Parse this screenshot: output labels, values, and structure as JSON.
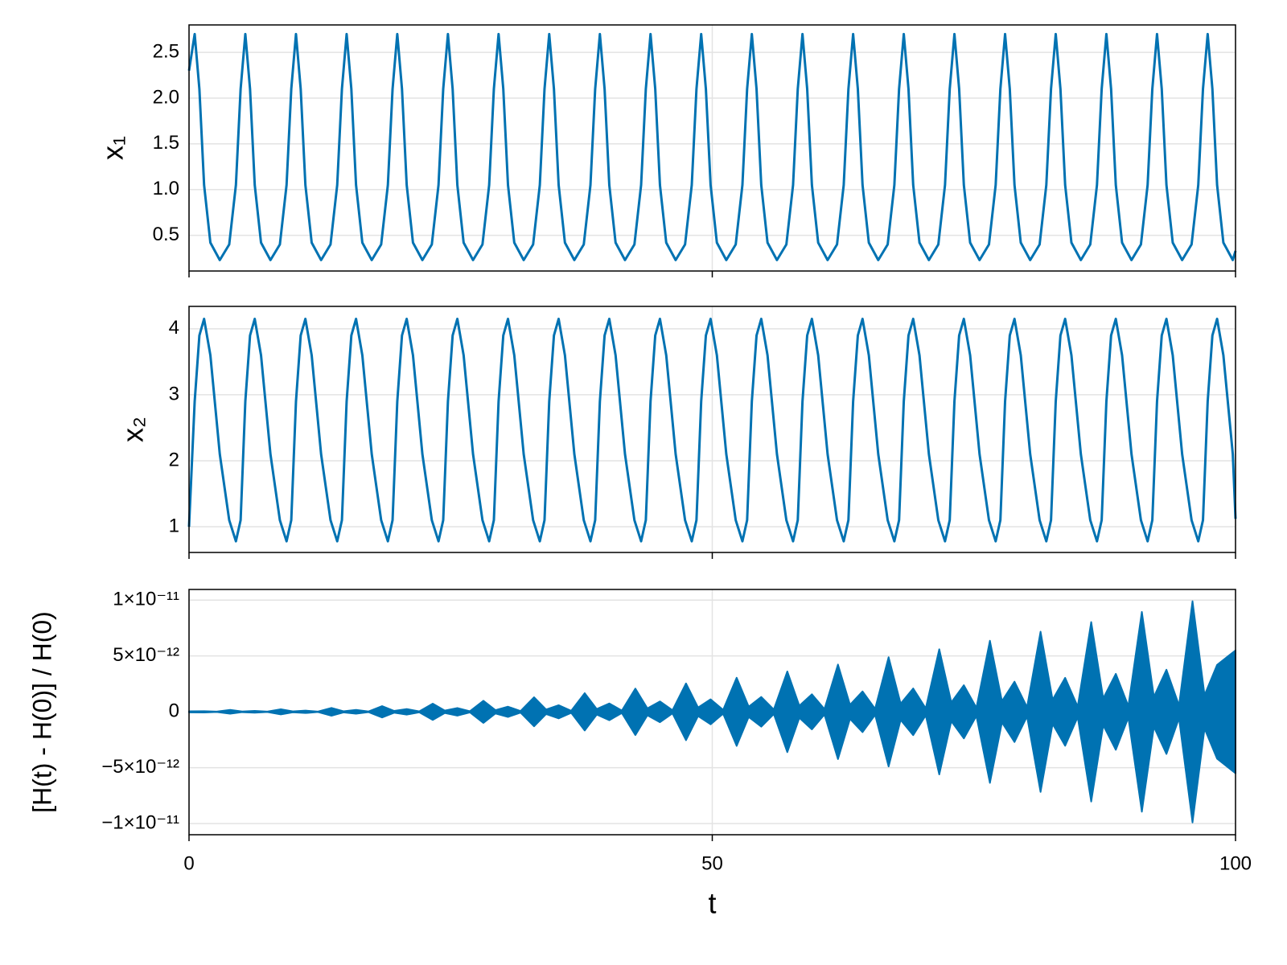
{
  "chart_data": [
    {
      "type": "line",
      "ylabel": "x₁",
      "grid": true,
      "xlim": [
        0,
        100
      ],
      "xticks": [
        0,
        50,
        100
      ],
      "ylim": [
        0.11,
        2.8
      ],
      "yticks": [
        {
          "value": 0.5,
          "label": "0.5"
        },
        {
          "value": 1.0,
          "label": "1.0"
        },
        1.5,
        {
          "value": 2.0,
          "label": "2.0"
        },
        2.5
      ],
      "x": [
        0,
        0.54,
        0.99,
        1.44,
        2.04,
        2.94,
        3.84,
        4.48,
        4.93,
        5.38,
        5.83,
        6.28,
        6.88,
        7.78,
        8.68,
        9.32,
        9.77,
        10.22,
        10.67,
        11.12,
        11.72,
        12.62,
        13.52,
        14.16,
        14.61,
        15.06,
        15.51,
        15.96,
        16.56,
        17.46,
        18.36,
        19.0,
        19.45,
        19.9,
        20.35,
        20.8,
        21.4,
        22.3,
        23.2,
        23.84,
        24.29,
        24.74,
        25.19,
        25.64,
        26.24,
        27.14,
        28.04,
        28.68,
        29.13,
        29.58,
        30.03,
        30.48,
        31.08,
        31.98,
        32.88,
        33.52,
        33.97,
        34.42,
        34.87,
        35.32,
        35.92,
        36.82,
        37.72,
        38.36,
        38.81,
        39.26,
        39.71,
        40.16,
        40.76,
        41.66,
        42.56,
        43.2,
        43.65,
        44.1,
        44.55,
        45.0,
        45.6,
        46.5,
        47.4,
        48.04,
        48.49,
        48.94,
        49.39,
        49.84,
        50.44,
        51.34,
        52.24,
        52.88,
        53.33,
        53.78,
        54.23,
        54.68,
        55.28,
        56.18,
        57.08,
        57.72,
        58.17,
        58.62,
        59.07,
        59.52,
        60.12,
        61.02,
        61.92,
        62.56,
        63.01,
        63.46,
        63.91,
        64.36,
        64.96,
        65.86,
        66.76,
        67.4,
        67.85,
        68.3,
        68.75,
        69.2,
        69.8,
        70.7,
        71.6,
        72.24,
        72.69,
        73.14,
        73.59,
        74.04,
        74.64,
        75.54,
        76.44,
        77.08,
        77.53,
        77.98,
        78.43,
        78.88,
        79.48,
        80.38,
        81.28,
        81.92,
        82.37,
        82.82,
        83.27,
        83.72,
        84.32,
        85.22,
        86.12,
        86.76,
        87.21,
        87.66,
        88.11,
        88.56,
        89.16,
        90.06,
        90.96,
        91.6,
        92.05,
        92.5,
        92.95,
        93.4,
        94.0,
        94.9,
        95.8,
        96.44,
        96.89,
        97.34,
        97.79,
        98.24,
        98.84,
        99.74,
        100
      ],
      "series": [
        {
          "color": "#0072b2",
          "values": [
            2.3,
            2.7,
            2.1,
            1.05,
            0.42,
            0.23,
            0.4,
            1.05,
            2.1,
            2.7,
            2.1,
            1.05,
            0.42,
            0.23,
            0.4,
            1.05,
            2.1,
            2.7,
            2.1,
            1.05,
            0.42,
            0.23,
            0.4,
            1.05,
            2.1,
            2.7,
            2.1,
            1.05,
            0.42,
            0.23,
            0.4,
            1.05,
            2.1,
            2.7,
            2.1,
            1.05,
            0.42,
            0.23,
            0.4,
            1.05,
            2.1,
            2.7,
            2.1,
            1.05,
            0.42,
            0.23,
            0.4,
            1.05,
            2.1,
            2.7,
            2.1,
            1.05,
            0.42,
            0.23,
            0.4,
            1.05,
            2.1,
            2.7,
            2.1,
            1.05,
            0.42,
            0.23,
            0.4,
            1.05,
            2.1,
            2.7,
            2.1,
            1.05,
            0.42,
            0.23,
            0.4,
            1.05,
            2.1,
            2.7,
            2.1,
            1.05,
            0.42,
            0.23,
            0.4,
            1.05,
            2.1,
            2.7,
            2.1,
            1.05,
            0.42,
            0.23,
            0.4,
            1.05,
            2.1,
            2.7,
            2.1,
            1.05,
            0.42,
            0.23,
            0.4,
            1.05,
            2.1,
            2.7,
            2.1,
            1.05,
            0.42,
            0.23,
            0.4,
            1.05,
            2.1,
            2.7,
            2.1,
            1.05,
            0.42,
            0.23,
            0.4,
            1.05,
            2.1,
            2.7,
            2.1,
            1.05,
            0.42,
            0.23,
            0.4,
            1.05,
            2.1,
            2.7,
            2.1,
            1.05,
            0.42,
            0.23,
            0.4,
            1.05,
            2.1,
            2.7,
            2.1,
            1.05,
            0.42,
            0.23,
            0.4,
            1.05,
            2.1,
            2.7,
            2.1,
            1.05,
            0.42,
            0.23,
            0.4,
            1.05,
            2.1,
            2.7,
            2.1,
            1.05,
            0.42,
            0.23,
            0.4,
            1.05,
            2.1,
            2.7,
            2.1,
            1.05,
            0.42,
            0.23,
            0.4,
            1.05,
            2.1,
            2.7,
            2.1,
            1.05,
            0.42,
            0.23,
            0.33
          ]
        }
      ]
    },
    {
      "type": "line",
      "ylabel": "x₂",
      "grid": true,
      "xlim": [
        0,
        100
      ],
      "xticks": [
        0,
        50,
        100
      ],
      "ylim": [
        0.61,
        4.34
      ],
      "yticks": [
        1,
        2,
        3,
        4
      ],
      "x": [
        0,
        0.54,
        0.99,
        1.44,
        2.04,
        2.94,
        3.84,
        4.48,
        4.93,
        5.38,
        5.83,
        6.28,
        6.88,
        7.78,
        8.68,
        9.32,
        9.77,
        10.22,
        10.67,
        11.12,
        11.72,
        12.62,
        13.52,
        14.16,
        14.61,
        15.06,
        15.51,
        15.96,
        16.56,
        17.46,
        18.36,
        19.0,
        19.45,
        19.9,
        20.35,
        20.8,
        21.4,
        22.3,
        23.2,
        23.84,
        24.29,
        24.74,
        25.19,
        25.64,
        26.24,
        27.14,
        28.04,
        28.68,
        29.13,
        29.58,
        30.03,
        30.48,
        31.08,
        31.98,
        32.88,
        33.52,
        33.97,
        34.42,
        34.87,
        35.32,
        35.92,
        36.82,
        37.72,
        38.36,
        38.81,
        39.26,
        39.71,
        40.16,
        40.76,
        41.66,
        42.56,
        43.2,
        43.65,
        44.1,
        44.55,
        45.0,
        45.6,
        46.5,
        47.4,
        48.04,
        48.49,
        48.94,
        49.39,
        49.84,
        50.44,
        51.34,
        52.24,
        52.88,
        53.33,
        53.78,
        54.23,
        54.68,
        55.28,
        56.18,
        57.08,
        57.72,
        58.17,
        58.62,
        59.07,
        59.52,
        60.12,
        61.02,
        61.92,
        62.56,
        63.01,
        63.46,
        63.91,
        64.36,
        64.96,
        65.86,
        66.76,
        67.4,
        67.85,
        68.3,
        68.75,
        69.2,
        69.8,
        70.7,
        71.6,
        72.24,
        72.69,
        73.14,
        73.59,
        74.04,
        74.64,
        75.54,
        76.44,
        77.08,
        77.53,
        77.98,
        78.43,
        78.88,
        79.48,
        80.38,
        81.28,
        81.92,
        82.37,
        82.82,
        83.27,
        83.72,
        84.32,
        85.22,
        86.12,
        86.76,
        87.21,
        87.66,
        88.11,
        88.56,
        89.16,
        90.06,
        90.96,
        91.6,
        92.05,
        92.5,
        92.95,
        93.4,
        94.0,
        94.9,
        95.8,
        96.44,
        96.89,
        97.34,
        97.79,
        98.24,
        98.84,
        99.74,
        100
      ],
      "series": [
        {
          "color": "#0072b2",
          "values": [
            1.0,
            2.9,
            3.9,
            4.15,
            3.6,
            2.1,
            1.1,
            0.78,
            1.1,
            2.9,
            3.9,
            4.15,
            3.6,
            2.1,
            1.1,
            0.78,
            1.1,
            2.9,
            3.9,
            4.15,
            3.6,
            2.1,
            1.1,
            0.78,
            1.1,
            2.9,
            3.9,
            4.15,
            3.6,
            2.1,
            1.1,
            0.78,
            1.1,
            2.9,
            3.9,
            4.15,
            3.6,
            2.1,
            1.1,
            0.78,
            1.1,
            2.9,
            3.9,
            4.15,
            3.6,
            2.1,
            1.1,
            0.78,
            1.1,
            2.9,
            3.9,
            4.15,
            3.6,
            2.1,
            1.1,
            0.78,
            1.1,
            2.9,
            3.9,
            4.15,
            3.6,
            2.1,
            1.1,
            0.78,
            1.1,
            2.9,
            3.9,
            4.15,
            3.6,
            2.1,
            1.1,
            0.78,
            1.1,
            2.9,
            3.9,
            4.15,
            3.6,
            2.1,
            1.1,
            0.78,
            1.1,
            2.9,
            3.9,
            4.15,
            3.6,
            2.1,
            1.1,
            0.78,
            1.1,
            2.9,
            3.9,
            4.15,
            3.6,
            2.1,
            1.1,
            0.78,
            1.1,
            2.9,
            3.9,
            4.15,
            3.6,
            2.1,
            1.1,
            0.78,
            1.1,
            2.9,
            3.9,
            4.15,
            3.6,
            2.1,
            1.1,
            0.78,
            1.1,
            2.9,
            3.9,
            4.15,
            3.6,
            2.1,
            1.1,
            0.78,
            1.1,
            2.9,
            3.9,
            4.15,
            3.6,
            2.1,
            1.1,
            0.78,
            1.1,
            2.9,
            3.9,
            4.15,
            3.6,
            2.1,
            1.1,
            0.78,
            1.1,
            2.9,
            3.9,
            4.15,
            3.6,
            2.1,
            1.1,
            0.78,
            1.1,
            2.9,
            3.9,
            4.15,
            3.6,
            2.1,
            1.1,
            0.78,
            1.1,
            2.9,
            3.9,
            4.15,
            3.6,
            2.1,
            1.1,
            0.78,
            1.1,
            2.9,
            3.9,
            4.15,
            3.6,
            2.1,
            1.12
          ]
        }
      ]
    },
    {
      "type": "band",
      "ylabel": "[H(t) - H(0)] / H(0)",
      "xlabel": "t",
      "grid": true,
      "color": "#0072b2",
      "xlim": [
        0,
        100
      ],
      "xticks": [
        0,
        50,
        100
      ],
      "ylim": [
        -1.1e-11,
        1.095e-11
      ],
      "yticks": [
        {
          "value": -1e-11,
          "label": "−1×10⁻¹¹"
        },
        {
          "value": -5e-12,
          "label": "−5×10⁻¹²"
        },
        0,
        {
          "value": 5e-12,
          "label": "5×10⁻¹²"
        },
        {
          "value": 1e-11,
          "label": "1×10⁻¹¹"
        }
      ],
      "x": [
        0,
        1.44,
        2.64,
        3.93,
        5.08,
        6.28,
        7.48,
        8.77,
        9.92,
        11.12,
        12.32,
        13.61,
        14.76,
        15.96,
        17.16,
        18.45,
        19.6,
        20.8,
        22.0,
        23.29,
        24.44,
        25.64,
        26.84,
        28.13,
        29.28,
        30.48,
        31.68,
        32.97,
        34.12,
        35.32,
        36.52,
        37.81,
        38.96,
        40.16,
        41.36,
        42.65,
        43.8,
        45.0,
        46.2,
        47.49,
        48.64,
        49.84,
        51.04,
        52.33,
        53.48,
        54.68,
        55.88,
        57.17,
        58.32,
        59.52,
        60.72,
        62.01,
        63.16,
        64.36,
        65.56,
        66.85,
        68.0,
        69.2,
        70.4,
        71.69,
        72.84,
        74.04,
        75.24,
        76.53,
        77.68,
        78.88,
        80.08,
        81.37,
        82.52,
        83.72,
        84.92,
        86.21,
        87.36,
        88.56,
        89.76,
        91.05,
        92.2,
        93.4,
        94.6,
        95.89,
        97.04,
        98.24,
        100
      ],
      "y_max": [
        5e-14,
        6e-14,
        2e-14,
        1.7e-13,
        3e-14,
        8e-14,
        2e-14,
        2.3e-13,
        4e-14,
        1.1e-13,
        2e-14,
        3.5e-13,
        5e-14,
        1.7e-13,
        3e-14,
        5.1e-13,
        8e-14,
        2.5e-13,
        4e-14,
        7.3e-13,
        1.1e-13,
        3.4e-13,
        5e-14,
        9.9e-13,
        1.5e-13,
        4.6e-13,
        7e-14,
        1.3e-12,
        2e-13,
        5.9e-13,
        9e-14,
        1.67e-12,
        2.5e-13,
        7.5e-13,
        1.1e-13,
        2.08e-12,
        3.1e-13,
        9.3e-13,
        1.4e-13,
        2.54e-12,
        3.8e-13,
        1.12e-12,
        1.7e-13,
        3.05e-12,
        4.6e-13,
        1.33e-12,
        2e-13,
        3.61e-12,
        5.4e-13,
        1.57e-12,
        2.4e-13,
        4.23e-12,
        6.3e-13,
        1.82e-12,
        2.7e-13,
        4.89e-12,
        7.3e-13,
        2.09e-12,
        3.1e-13,
        5.6e-12,
        8.4e-13,
        2.38e-12,
        3.6e-13,
        6.36e-12,
        9.5e-13,
        2.7e-12,
        4.1e-13,
        7.17e-12,
        1.08e-12,
        3.04e-12,
        4.6e-13,
        8.03e-12,
        1.2e-12,
        3.4e-12,
        5.1e-13,
        8.94e-12,
        1.34e-12,
        3.77e-12,
        5.7e-13,
        9.9e-12,
        1.49e-12,
        4.2e-12,
        5.5e-12
      ],
      "y_min": [
        -5e-14,
        -6e-14,
        -2e-14,
        -1.7e-13,
        -3e-14,
        -8e-14,
        -2e-14,
        -2.3e-13,
        -4e-14,
        -1.1e-13,
        -2e-14,
        -3.5e-13,
        -5e-14,
        -1.7e-13,
        -3e-14,
        -5.1e-13,
        -8e-14,
        -2.5e-13,
        -4e-14,
        -7.3e-13,
        -1.1e-13,
        -3.4e-13,
        -5e-14,
        -9.9e-13,
        -1.5e-13,
        -4.6e-13,
        -7e-14,
        -1.3e-12,
        -2e-13,
        -5.9e-13,
        -9e-14,
        -1.67e-12,
        -2.5e-13,
        -7.5e-13,
        -1.1e-13,
        -2.08e-12,
        -3.1e-13,
        -9.3e-13,
        -1.4e-13,
        -2.54e-12,
        -3.8e-13,
        -1.12e-12,
        -1.7e-13,
        -3.05e-12,
        -4.6e-13,
        -1.33e-12,
        -2e-13,
        -3.61e-12,
        -5.4e-13,
        -1.57e-12,
        -2.4e-13,
        -4.23e-12,
        -6.3e-13,
        -1.82e-12,
        -2.7e-13,
        -4.89e-12,
        -7.3e-13,
        -2.09e-12,
        -3.1e-13,
        -5.6e-12,
        -8.4e-13,
        -2.38e-12,
        -3.6e-13,
        -6.36e-12,
        -9.5e-13,
        -2.7e-12,
        -4.1e-13,
        -7.17e-12,
        -1.08e-12,
        -3.04e-12,
        -4.6e-13,
        -8.03e-12,
        -1.2e-12,
        -3.4e-12,
        -5.1e-13,
        -8.94e-12,
        -1.34e-12,
        -3.77e-12,
        -5.7e-13,
        -9.9e-12,
        -1.49e-12,
        -4.2e-12,
        -5.5e-12
      ]
    }
  ]
}
